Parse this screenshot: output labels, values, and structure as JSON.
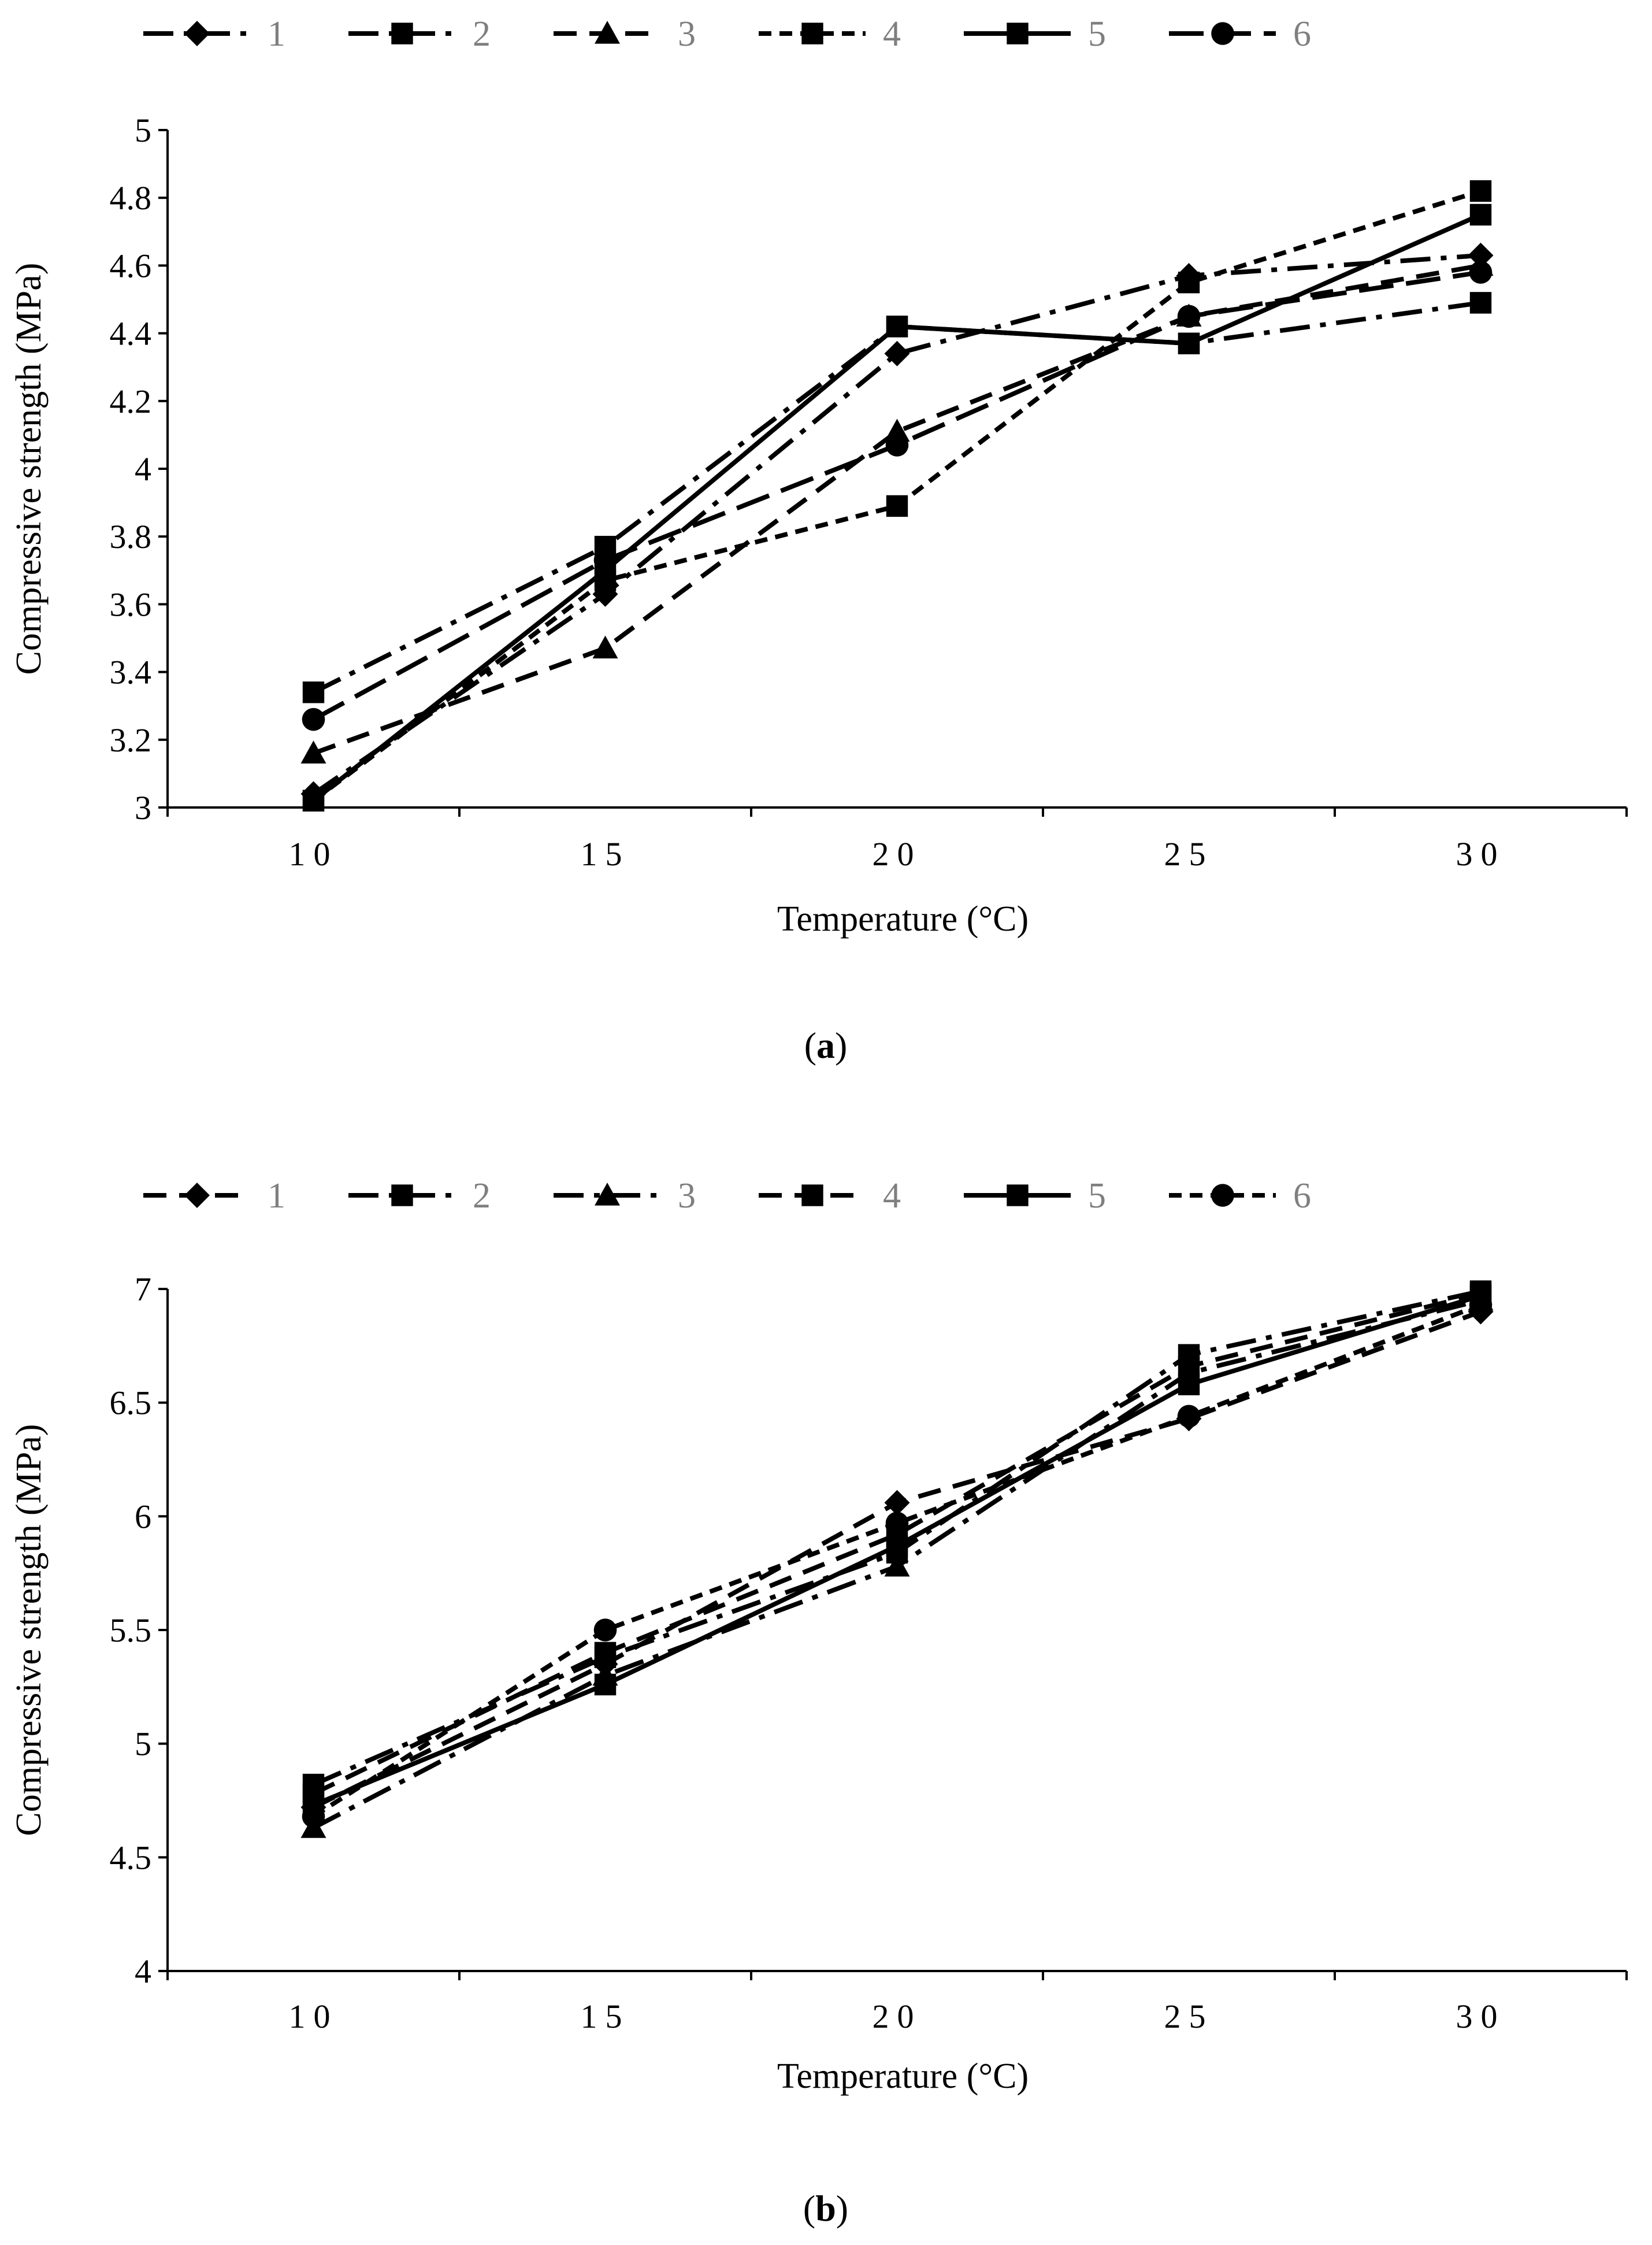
{
  "chart_data": [
    {
      "type": "line",
      "panel_label": "a",
      "xlabel": "Temperature (°C)",
      "ylabel": "Compressive strength (MPa)",
      "categories": [
        "10",
        "15",
        "20",
        "25",
        "30"
      ],
      "ylim": [
        3,
        5
      ],
      "yticks": [
        "3",
        "3.2",
        "3.4",
        "3.6",
        "3.8",
        "4",
        "4.2",
        "4.4",
        "4.6",
        "4.8",
        "5"
      ],
      "grid": false,
      "legend_position": "top",
      "series": [
        {
          "name": "1",
          "marker": "diamond",
          "dash": "long-dash-dot",
          "values": [
            3.04,
            3.63,
            4.34,
            4.57,
            4.63
          ]
        },
        {
          "name": "2",
          "marker": "square",
          "dash": "long-dash-dot",
          "values": [
            3.34,
            3.77,
            4.42,
            4.37,
            4.49
          ]
        },
        {
          "name": "3",
          "marker": "triangle",
          "dash": "dash",
          "values": [
            3.16,
            3.47,
            4.11,
            4.45,
            4.6
          ]
        },
        {
          "name": "4",
          "marker": "square",
          "dash": "short-dash",
          "values": [
            3.02,
            3.67,
            3.89,
            4.55,
            4.82
          ]
        },
        {
          "name": "5",
          "marker": "square",
          "dash": "solid",
          "values": [
            3.02,
            3.7,
            4.42,
            4.37,
            4.75
          ]
        },
        {
          "name": "6",
          "marker": "circle",
          "dash": "long-dash",
          "values": [
            3.26,
            3.73,
            4.07,
            4.45,
            4.58
          ]
        }
      ]
    },
    {
      "type": "line",
      "panel_label": "b",
      "xlabel": "Temperature (°C)",
      "ylabel": "Compressive strength (MPa)",
      "categories": [
        "10",
        "15",
        "20",
        "25",
        "30"
      ],
      "ylim": [
        4,
        7
      ],
      "yticks": [
        "4",
        "4.5",
        "5",
        "5.5",
        "6",
        "6.5",
        "7"
      ],
      "grid": false,
      "legend_position": "top",
      "series": [
        {
          "name": "1",
          "marker": "diamond",
          "dash": "dash",
          "values": [
            4.72,
            5.35,
            6.06,
            6.43,
            6.9
          ]
        },
        {
          "name": "2",
          "marker": "square",
          "dash": "long-dash-dot",
          "values": [
            4.82,
            5.38,
            5.84,
            6.71,
            6.99
          ]
        },
        {
          "name": "3",
          "marker": "triangle",
          "dash": "long-dash-dot",
          "values": [
            4.63,
            5.3,
            5.78,
            6.63,
            6.95
          ]
        },
        {
          "name": "4",
          "marker": "square",
          "dash": "dash",
          "values": [
            4.78,
            5.4,
            5.92,
            6.66,
            6.98
          ]
        },
        {
          "name": "5",
          "marker": "square",
          "dash": "solid",
          "values": [
            4.73,
            5.26,
            5.87,
            6.58,
            6.97
          ]
        },
        {
          "name": "6",
          "marker": "circle",
          "dash": "short-dash",
          "values": [
            4.68,
            5.5,
            5.97,
            6.44,
            6.93
          ]
        }
      ]
    }
  ]
}
